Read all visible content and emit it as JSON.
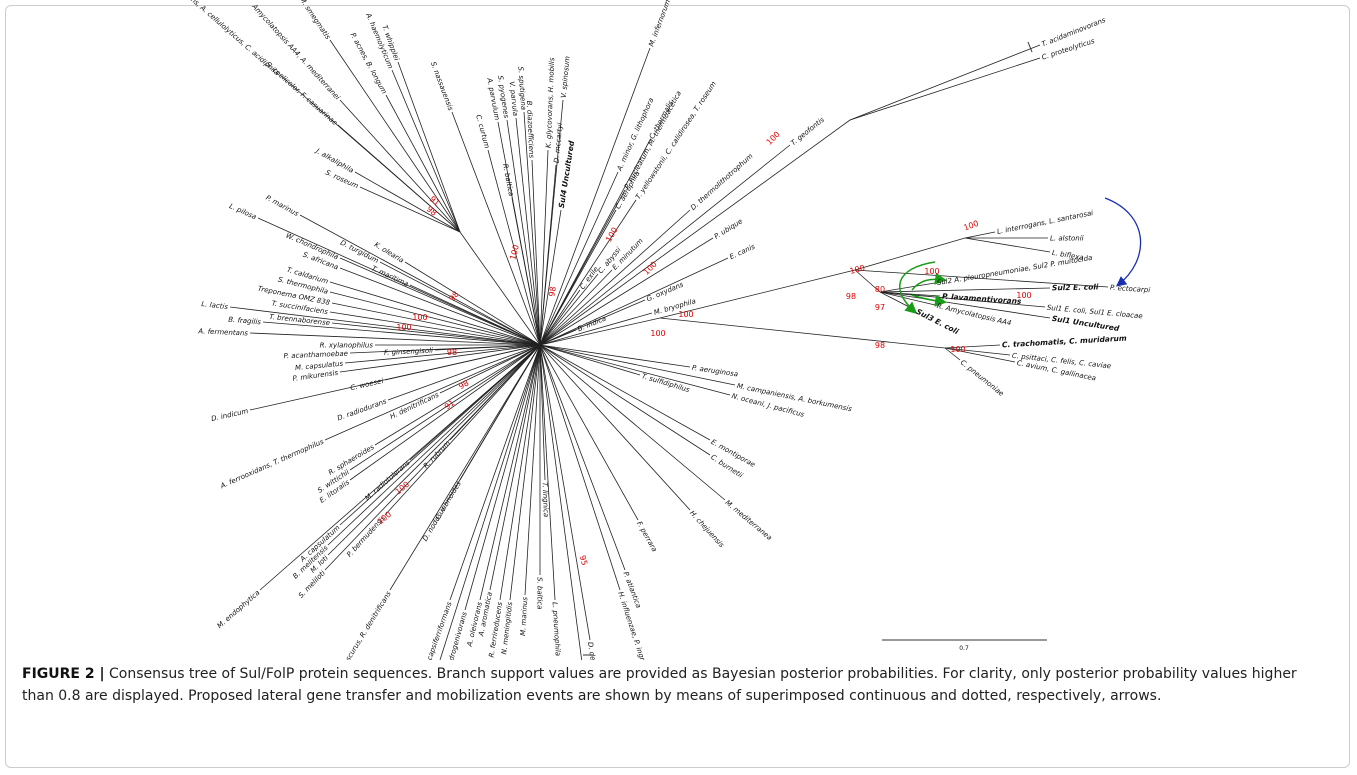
{
  "tree": {
    "leaves": [
      "T. whipplei",
      "A. haemolyticum",
      "P. acnes, B. longum",
      "S. tropica, N. multipartita, M. smegmatis",
      "Amycolatopsis AA4, A. mediterranei",
      "S. coelicolor, F. casuarinae",
      "K. radiotolerans, A. cellulolyticus, C. acidiphila",
      "J. alkaliphila",
      "S. roseum",
      "S. nassauensis",
      "C. curtum",
      "R. baltica",
      "A. parvulum",
      "S. pyogenes",
      "V. parvula",
      "S. sputigena",
      "B. diazoefficiens",
      "K. glycovorans, H. mobilis",
      "Sul4 Uncultured",
      "D. mccartyi",
      "V. spinosum",
      "M. infernorum",
      "C. thermalis",
      "A. minor, G. lithophora",
      "P. nucleatum, M. thermoacetica",
      "T. yellowstonii, C. calidirosea, T. roseum",
      "C. aerophila",
      "D. thermolithotrophum",
      "C. exile",
      "C. abyssi",
      "E. minutum",
      "T. geofontis",
      "T. acidaminovorans",
      "C. proteolyticus",
      "P. ubique",
      "E. canis",
      "B. indica",
      "G. oxydans",
      "M. bryophila",
      "P. marinus",
      "L. pilosa",
      "D. turgidum",
      "K. olearia",
      "W. chondrophila",
      "S. africana",
      "T. caldarium",
      "S. thermophila",
      "T. maritima",
      "Treponema OMZ 838",
      "T. succinifaciens",
      "T. brennaborense",
      "L. lactis",
      "B. fragilis",
      "A. fermentans",
      "R. xylanophilus",
      "P. acanthamoebae",
      "M. capsulatus",
      "P. mikurensis",
      "F. ginsengisoli",
      "C. woesei",
      "D. indicum",
      "D. radiodurans",
      "A. ferrooxidans, T. thermophilus",
      "H. denitrificans",
      "R. sphaeroides",
      "S. wittichii",
      "E. litoralis",
      "M. radiotolerans",
      "R. rubrum",
      "A. capsulatum",
      "B. melitensis",
      "M. loti",
      "S. meliloti",
      "M. endophytica",
      "P. bermudensis",
      "D. nodosus",
      "G. obscurus, R. denitrificans",
      "C. vibrioides",
      "G. capsiferriformans",
      "S. hydrogenivorans",
      "E. proavitum",
      "A. oleivorans",
      "A. aromatica",
      "R. ferrireducens",
      "N. meningitidis",
      "M. marinus",
      "S. baltica",
      "T. lingnica",
      "L. pneumophila",
      "D. desulfuricans",
      "H. marinus",
      "H. influenzae, P. ingrahamii",
      "P. atlantica",
      "F. perrara",
      "H. chejuensis",
      "M. mediterranea",
      "P. aeruginosa",
      "M. campaniensis, A. borkumensis",
      "T. sulfidiphilus",
      "N. oceani, J. pacificus",
      "E. montiporae",
      "C. burnetii",
      "L. interrogans, L. santarosai",
      "L. alstonii",
      "L. biflexa",
      "P. ectocarpi",
      "Sul2 A. pleuropneumoniae, Sul2 P. multocida",
      "Sul2 E. coli",
      "P. lavamentivorans",
      "R. Amycolatopsis AA4",
      "Sul1 E. coli, Sul1 E. cloacae",
      "Sul1 Uncultured",
      "Sul3 E. coli",
      "C. trachomatis, C. muridarum",
      "C. psittaci, C. felis, C. caviae",
      "C. avium, C. gallinacea",
      "C. pneumoniae"
    ],
    "support_values": [
      100,
      100,
      100,
      100,
      80,
      100,
      98,
      97,
      100,
      100,
      98,
      100,
      98,
      91,
      98,
      100,
      98,
      100,
      100,
      98,
      98,
      91,
      100,
      100,
      95,
      100,
      100
    ],
    "scale_bar_label": "0.7"
  },
  "caption": {
    "label": "FIGURE 2 |",
    "text": "Consensus tree of Sul/FolP protein sequences. Branch support values are provided as Bayesian posterior probabilities. For clarity, only posterior probability values higher than 0.8 are displayed. Proposed lateral gene transfer and mobilization events are shown by means of superimposed continuous and dotted, respectively, arrows."
  }
}
